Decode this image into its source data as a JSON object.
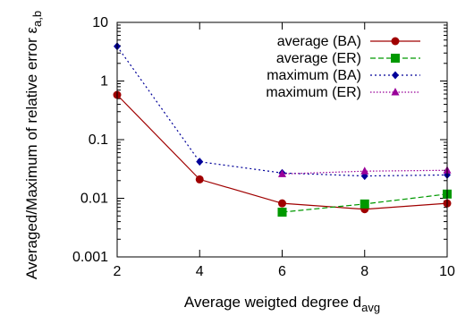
{
  "chart_data": {
    "type": "line",
    "xlabel": {
      "main": "Average weigted degree d",
      "sub": "avg"
    },
    "ylabel": {
      "main": "Averaged/Maximum of relative error ε",
      "sub": "a,b"
    },
    "x_range": [
      2,
      10
    ],
    "y_range": [
      0.001,
      10
    ],
    "y_scale": "log",
    "x_ticks": [
      2,
      4,
      6,
      8,
      10
    ],
    "y_ticks": [
      {
        "value": 0.001,
        "label": "0.001"
      },
      {
        "value": 0.01,
        "label": "0.01"
      },
      {
        "value": 0.1,
        "label": "0.1"
      },
      {
        "value": 1,
        "label": "1"
      },
      {
        "value": 10,
        "label": "10"
      }
    ],
    "legend_position": "top-right",
    "series": [
      {
        "name": "average (BA)",
        "color": "#a00000",
        "marker": "circle",
        "dash": "solid",
        "x": [
          2,
          4,
          6,
          8,
          10
        ],
        "y": [
          0.58,
          0.021,
          0.0082,
          0.0065,
          0.0082
        ]
      },
      {
        "name": "average (ER)",
        "color": "#009900",
        "marker": "square",
        "dash": "dashed",
        "x": [
          6,
          8,
          10
        ],
        "y": [
          0.0058,
          0.008,
          0.0118
        ]
      },
      {
        "name": "maximum (BA)",
        "color": "#000099",
        "marker": "diamond",
        "dash": "dotted",
        "x": [
          2,
          4,
          6,
          8,
          10
        ],
        "y": [
          3.9,
          0.042,
          0.027,
          0.024,
          0.025
        ]
      },
      {
        "name": "maximum (ER)",
        "color": "#990099",
        "marker": "triangle",
        "dash": "densedot",
        "x": [
          6,
          8,
          10
        ],
        "y": [
          0.026,
          0.029,
          0.03
        ]
      }
    ]
  }
}
